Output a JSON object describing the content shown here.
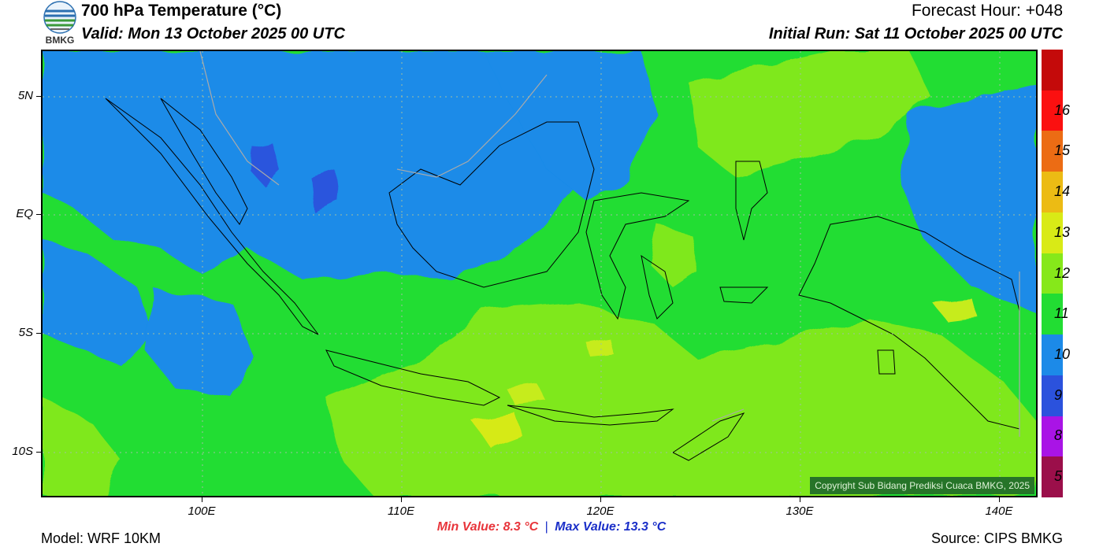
{
  "header": {
    "logo_text": "BMKG",
    "title": "700 hPa Temperature (°C)",
    "valid": "Valid: Mon 13 October 2025 00 UTC",
    "forecast_hour": "Forecast Hour: +048",
    "initial_run": "Initial Run: Sat 11 October 2025 00 UTC"
  },
  "map": {
    "lat_labels": [
      "5N",
      "EQ",
      "5S",
      "10S"
    ],
    "lon_labels": [
      "100E",
      "110E",
      "120E",
      "130E",
      "140E"
    ],
    "copyright": "Copyright Sub Bidang Prediksi Cuaca BMKG, 2025",
    "field_colors": {
      "t9": "#1a8be8",
      "t10": "#22dd33",
      "t11": "#7fe81a",
      "t12": "#c6ec1c",
      "t8": "#2b55dd",
      "land_outline": "#000000",
      "country_border": "#aaaaaa"
    }
  },
  "colorbar": {
    "bins": [
      {
        "color": "#9b0f4a",
        "label": "5"
      },
      {
        "color": "#a914e6",
        "label": "8"
      },
      {
        "color": "#2b52dd",
        "label": "9"
      },
      {
        "color": "#1c8ae8",
        "label": "10"
      },
      {
        "color": "#22dd33",
        "label": "11"
      },
      {
        "color": "#86e81a",
        "label": "12"
      },
      {
        "color": "#d9ea16",
        "label": "13"
      },
      {
        "color": "#ecbb14",
        "label": "14"
      },
      {
        "color": "#ec6c14",
        "label": "15"
      },
      {
        "color": "#fb1010",
        "label": "16"
      },
      {
        "color": "#c40a0a",
        "label": ""
      }
    ]
  },
  "footer": {
    "model": "Model: WRF 10KM",
    "min_value": "Min Value: 8.3 °C",
    "separator": "|",
    "max_value": "Max Value: 13.3 °C",
    "source": "Source: CIPS BMKG"
  }
}
